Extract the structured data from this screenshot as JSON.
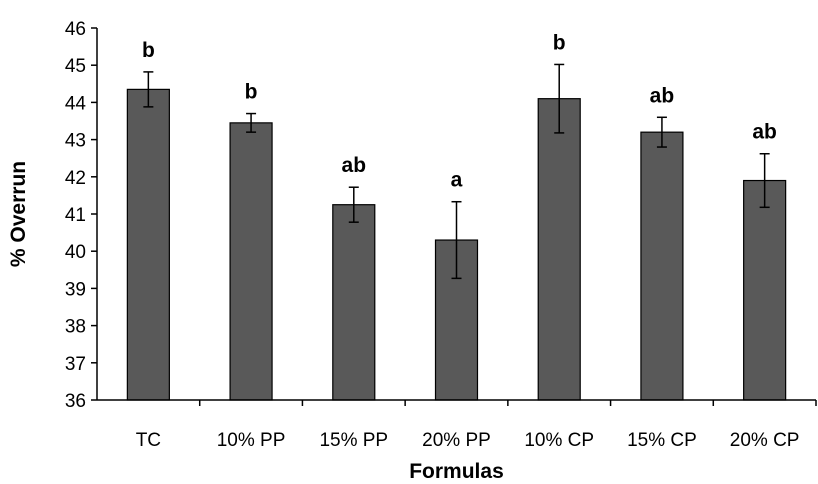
{
  "chart_data": {
    "type": "bar",
    "title": "",
    "xlabel": "Formulas",
    "ylabel": "% Overrun",
    "ylim": [
      36,
      46
    ],
    "yticks": [
      "36",
      "37",
      "38",
      "39",
      "40",
      "41",
      "42",
      "43",
      "44",
      "45",
      "46"
    ],
    "grid": false,
    "legend": "none",
    "bar_color": "#595959",
    "categories": [
      "TC",
      "10% PP",
      "15% PP",
      "20% PP",
      "10% CP",
      "15% CP",
      "20% CP"
    ],
    "values": [
      44.35,
      43.45,
      41.25,
      40.3,
      44.1,
      43.2,
      41.9
    ],
    "errors": [
      0.47,
      0.25,
      0.47,
      1.03,
      0.92,
      0.4,
      0.72
    ],
    "annotations": [
      "b",
      "b",
      "ab",
      "a",
      "b",
      "ab",
      "ab"
    ]
  }
}
